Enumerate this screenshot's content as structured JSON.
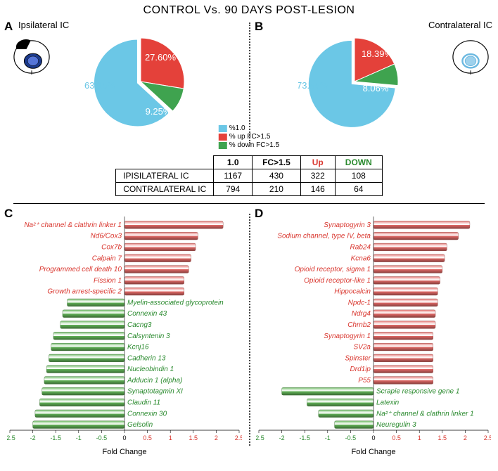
{
  "title": "CONTROL Vs. 90 DAYS POST-LESION",
  "panelA": {
    "letter": "A",
    "subtitle": "Ipsilateral IC"
  },
  "panelB": {
    "letter": "B",
    "subtitle": "Contralateral IC"
  },
  "panelC": {
    "letter": "C"
  },
  "panelD": {
    "letter": "D"
  },
  "colors": {
    "blue": "#6bc7e6",
    "red": "#e4413a",
    "green": "#3fa34f",
    "barRed": "#e46b68",
    "barGreen": "#63b559",
    "axisRed": "#d9362e",
    "axisGreen": "#2a8a2e"
  },
  "pieA": {
    "slices": [
      {
        "label": "63.15%",
        "value": 63.15,
        "colorKey": "blue"
      },
      {
        "label": "27.60%",
        "value": 27.6,
        "colorKey": "red"
      },
      {
        "label": "9.25%",
        "value": 9.25,
        "colorKey": "green"
      }
    ],
    "explodeBlue": true
  },
  "pieB": {
    "slices": [
      {
        "label": "73.55%",
        "value": 73.55,
        "colorKey": "blue"
      },
      {
        "label": "18.39%",
        "value": 18.39,
        "colorKey": "red"
      },
      {
        "label": "8.06%",
        "value": 8.06,
        "colorKey": "green"
      }
    ],
    "explodeBlue": true
  },
  "legend": {
    "items": [
      {
        "label": "%1.0<FC<1.5",
        "colorKey": "blue"
      },
      {
        "label": "% up FC>1.5",
        "colorKey": "red"
      },
      {
        "label": "% down FC>1.5",
        "colorKey": "green"
      }
    ]
  },
  "table": {
    "headers": [
      "",
      "1.0<FC<1.5",
      "FC>1.5",
      "Up",
      "DOWN"
    ],
    "headerColors": [
      "",
      "#000",
      "#000",
      "#d9362e",
      "#2a8a2e"
    ],
    "rows": [
      {
        "label": "IPISILATERAL IC",
        "cells": [
          "1167",
          "430",
          "322",
          "108"
        ]
      },
      {
        "label": "CONTRALATERAL IC",
        "cells": [
          "794",
          "210",
          "146",
          "64"
        ]
      }
    ]
  },
  "chartC": {
    "xlim": [
      -2.5,
      2.5
    ],
    "xticks": [
      -2.5,
      -2,
      -1.5,
      -1,
      -0.5,
      0,
      0.5,
      1,
      1.5,
      2,
      2.5
    ],
    "bars": [
      {
        "label": "Na²⁺ channel & clathrin linker 1",
        "value": 2.15,
        "dir": "up"
      },
      {
        "label": "Nd6/Cox3",
        "value": 1.6,
        "dir": "up"
      },
      {
        "label": "Cox7b",
        "value": 1.55,
        "dir": "up"
      },
      {
        "label": "Calpain 7",
        "value": 1.45,
        "dir": "up"
      },
      {
        "label": "Programmed cell death 10",
        "value": 1.4,
        "dir": "up"
      },
      {
        "label": "Fission 1",
        "value": 1.3,
        "dir": "up"
      },
      {
        "label": "Growth arrest-specific 2",
        "value": 1.3,
        "dir": "up"
      },
      {
        "label": "Myelin-associated glycoprotein",
        "value": -1.25,
        "dir": "down"
      },
      {
        "label": "Connexin 43",
        "value": -1.35,
        "dir": "down"
      },
      {
        "label": "Cacng3",
        "value": -1.4,
        "dir": "down"
      },
      {
        "label": "Calsyntenin 3",
        "value": -1.55,
        "dir": "down"
      },
      {
        "label": "Kcnj16",
        "value": -1.6,
        "dir": "down"
      },
      {
        "label": "Cadherin 13",
        "value": -1.65,
        "dir": "down"
      },
      {
        "label": "Nucleobindin 1",
        "value": -1.7,
        "dir": "down"
      },
      {
        "label": "Adducin 1 (alpha)",
        "value": -1.75,
        "dir": "down"
      },
      {
        "label": "Synaptotagmin XI",
        "value": -1.8,
        "dir": "down"
      },
      {
        "label": "Claudin 11",
        "value": -1.85,
        "dir": "down"
      },
      {
        "label": "Connexin 30",
        "value": -1.95,
        "dir": "down"
      },
      {
        "label": "Gelsolin",
        "value": -2.0,
        "dir": "down"
      }
    ],
    "xlabel": "Fold Change"
  },
  "chartD": {
    "xlim": [
      -2.5,
      2.5
    ],
    "xticks": [
      -2.5,
      -2,
      -1.5,
      -1,
      -0.5,
      0,
      0.5,
      1,
      1.5,
      2,
      2.5
    ],
    "bars": [
      {
        "label": "Synaptogyrin 3",
        "value": 2.1,
        "dir": "up"
      },
      {
        "label": "Sodium channel, type IV, beta",
        "value": 1.85,
        "dir": "up"
      },
      {
        "label": "Rab24",
        "value": 1.6,
        "dir": "up"
      },
      {
        "label": "Kcna6",
        "value": 1.55,
        "dir": "up"
      },
      {
        "label": "Opioid receptor, sigma 1",
        "value": 1.5,
        "dir": "up"
      },
      {
        "label": "Opioid receptor-like 1",
        "value": 1.45,
        "dir": "up"
      },
      {
        "label": "Hippocalcin",
        "value": 1.4,
        "dir": "up"
      },
      {
        "label": "Npdc-1",
        "value": 1.4,
        "dir": "up"
      },
      {
        "label": "Ndrg4",
        "value": 1.35,
        "dir": "up"
      },
      {
        "label": "Chrnb2",
        "value": 1.35,
        "dir": "up"
      },
      {
        "label": "Synaptogyrin 1",
        "value": 1.3,
        "dir": "up"
      },
      {
        "label": "SV2a",
        "value": 1.3,
        "dir": "up"
      },
      {
        "label": "Spinster",
        "value": 1.3,
        "dir": "up"
      },
      {
        "label": "Drd1ip",
        "value": 1.3,
        "dir": "up"
      },
      {
        "label": "P55",
        "value": 1.3,
        "dir": "up"
      },
      {
        "label": "Scrapie responsive gene 1",
        "value": -2.0,
        "dir": "down"
      },
      {
        "label": "Latexin",
        "value": -1.45,
        "dir": "down"
      },
      {
        "label": "Na²⁺ channel & clathrin linker 1",
        "value": -1.2,
        "dir": "down"
      },
      {
        "label": "Neuregulin 3",
        "value": -0.85,
        "dir": "down"
      }
    ],
    "xlabel": "Fold Change"
  }
}
